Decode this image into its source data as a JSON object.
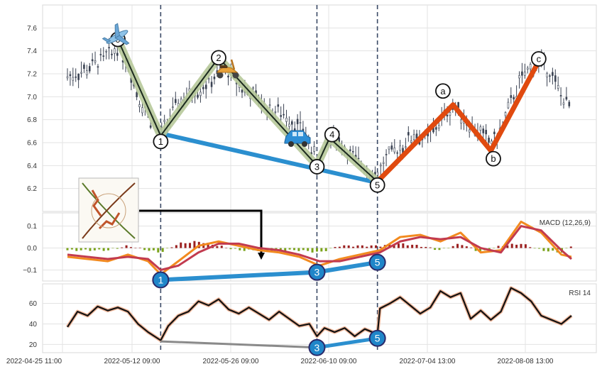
{
  "chart_data": [
    {
      "panel": "price",
      "type": "ohlc-candlestick",
      "ylim": [
        6.0,
        7.8
      ],
      "y_ticks": [
        6.2,
        6.4,
        6.6,
        6.8,
        7.0,
        7.2,
        7.4,
        7.6
      ],
      "grid": true,
      "x_domain": [
        0,
        100
      ],
      "price_path": [
        [
          0,
          7.18
        ],
        [
          3,
          7.22
        ],
        [
          6,
          7.3
        ],
        [
          9,
          7.38
        ],
        [
          10,
          7.45
        ],
        [
          12,
          7.3
        ],
        [
          14,
          7.0
        ],
        [
          16,
          6.85
        ],
        [
          18.5,
          6.65
        ],
        [
          20,
          6.8
        ],
        [
          22,
          6.95
        ],
        [
          25,
          7.05
        ],
        [
          28,
          7.12
        ],
        [
          30,
          7.2
        ],
        [
          31,
          7.25
        ],
        [
          34,
          7.1
        ],
        [
          37,
          7.0
        ],
        [
          40,
          6.9
        ],
        [
          43,
          6.85
        ],
        [
          45,
          6.78
        ],
        [
          47,
          6.7
        ],
        [
          49.5,
          6.42
        ],
        [
          51,
          6.55
        ],
        [
          53,
          6.66
        ],
        [
          55,
          6.55
        ],
        [
          57,
          6.45
        ],
        [
          59,
          6.4
        ],
        [
          61.5,
          6.3
        ],
        [
          63,
          6.45
        ],
        [
          65,
          6.52
        ],
        [
          67,
          6.6
        ],
        [
          69,
          6.68
        ],
        [
          71,
          6.62
        ],
        [
          73,
          6.72
        ],
        [
          75,
          6.85
        ],
        [
          76.5,
          6.92
        ],
        [
          78,
          6.85
        ],
        [
          80,
          6.75
        ],
        [
          82,
          6.68
        ],
        [
          84,
          6.6
        ],
        [
          86,
          6.7
        ],
        [
          88,
          6.95
        ],
        [
          90,
          7.15
        ],
        [
          92,
          7.25
        ],
        [
          94,
          7.3
        ],
        [
          96,
          7.2
        ],
        [
          98,
          7.0
        ],
        [
          100,
          6.9
        ]
      ],
      "wave_lines": {
        "impulse": [
          [
            10,
            7.5
          ],
          [
            18.5,
            6.66
          ],
          [
            30,
            7.34
          ],
          [
            49.5,
            6.4
          ],
          [
            52,
            6.64
          ],
          [
            61.5,
            6.26
          ]
        ],
        "corrective": [
          [
            61.5,
            6.26
          ],
          [
            76.5,
            6.93
          ],
          [
            84,
            6.53
          ],
          [
            93.5,
            7.31
          ]
        ],
        "trendline": [
          [
            18.5,
            6.68
          ],
          [
            61.5,
            6.25
          ]
        ]
      },
      "wave_labels": [
        {
          "label": "0",
          "x": 10,
          "y": 7.5
        },
        {
          "label": "1",
          "x": 18.5,
          "y": 6.61
        },
        {
          "label": "2",
          "x": 30,
          "y": 7.34
        },
        {
          "label": "3",
          "x": 49.5,
          "y": 6.39
        },
        {
          "label": "4",
          "x": 52.5,
          "y": 6.67
        },
        {
          "label": "5",
          "x": 61.5,
          "y": 6.23
        },
        {
          "label": "a",
          "x": 74.5,
          "y": 7.05
        },
        {
          "label": "b",
          "x": 84.5,
          "y": 6.46
        },
        {
          "label": "c",
          "x": 93.5,
          "y": 7.33
        }
      ],
      "icons": [
        "airplane-icon",
        "scooter-icon",
        "car-icon",
        "wave-diagram-thumbnail"
      ]
    },
    {
      "panel": "macd",
      "type": "line+bar",
      "title": "MACD (12,26,9)",
      "ylim": [
        -0.15,
        0.16
      ],
      "y_ticks": [
        0.1,
        0.0,
        -0.1
      ],
      "tick_labels": [
        "0.1",
        "0.0",
        "−0.1"
      ],
      "x": [
        0,
        4,
        8,
        12,
        16,
        18.5,
        22,
        26,
        30,
        34,
        38,
        42,
        46,
        50,
        54,
        58,
        62,
        66,
        70,
        74,
        78,
        82,
        86,
        90,
        94,
        98,
        100
      ],
      "series": [
        {
          "values": [
            -0.04,
            -0.05,
            -0.06,
            -0.03,
            -0.06,
            -0.12,
            -0.06,
            0.01,
            0.03,
            0.01,
            -0.01,
            -0.02,
            -0.04,
            -0.08,
            -0.05,
            -0.03,
            -0.01,
            0.05,
            0.06,
            0.03,
            0.07,
            -0.02,
            -0.01,
            0.12,
            0.07,
            -0.03,
            -0.04
          ],
          "color": "#f28a1f"
        },
        {
          "values": [
            -0.03,
            -0.04,
            -0.05,
            -0.04,
            -0.05,
            -0.1,
            -0.08,
            -0.02,
            0.02,
            0.02,
            0.0,
            -0.01,
            -0.03,
            -0.06,
            -0.06,
            -0.04,
            -0.02,
            0.03,
            0.05,
            0.04,
            0.05,
            0.0,
            -0.02,
            0.1,
            0.08,
            -0.01,
            -0.05
          ],
          "color": "#c23b4f"
        }
      ],
      "histogram": [
        -0.01,
        -0.01,
        -0.01,
        0.01,
        -0.01,
        -0.02,
        0.02,
        0.03,
        0.01,
        -0.01,
        -0.01,
        -0.01,
        -0.01,
        -0.02,
        0.01,
        0.01,
        0.01,
        0.02,
        0.01,
        -0.01,
        0.02,
        -0.02,
        0.01,
        0.02,
        -0.01,
        -0.02,
        0.01
      ],
      "markers": [
        {
          "label": "1",
          "x": 18.5,
          "y": -0.145
        },
        {
          "label": "3",
          "x": 49.5,
          "y": -0.11
        },
        {
          "label": "5",
          "x": 61.5,
          "y": -0.065
        }
      ]
    },
    {
      "panel": "rsi",
      "type": "line",
      "title": "RSI 14",
      "ylim": [
        12,
        79
      ],
      "y_ticks": [
        20,
        40,
        60
      ],
      "x": [
        0,
        2,
        4,
        6,
        8,
        10,
        12,
        14,
        16,
        18.5,
        20,
        22,
        24,
        26,
        28,
        30,
        32,
        34,
        36,
        38,
        40,
        42,
        44,
        46,
        48,
        49.5,
        51,
        53,
        55,
        57,
        59,
        61.5,
        62,
        64,
        66,
        68,
        70,
        72,
        74,
        76,
        78,
        80,
        82,
        84,
        86,
        88,
        90,
        92,
        94,
        96,
        98,
        100
      ],
      "values": [
        37,
        52,
        48,
        57,
        53,
        56,
        52,
        40,
        32,
        24,
        38,
        48,
        52,
        62,
        58,
        64,
        54,
        50,
        56,
        50,
        44,
        52,
        45,
        38,
        40,
        28,
        36,
        32,
        36,
        28,
        35,
        30,
        55,
        60,
        66,
        58,
        50,
        56,
        72,
        66,
        70,
        45,
        53,
        44,
        52,
        75,
        70,
        62,
        48,
        44,
        40,
        48
      ],
      "markers": [
        {
          "label": "3",
          "x": 49.5,
          "y": 17
        },
        {
          "label": "5",
          "x": 61.5,
          "y": 26
        }
      ],
      "divergence_lines": [
        [
          [
            18.5,
            23
          ],
          [
            49.5,
            17
          ]
        ],
        [
          [
            49.5,
            17
          ],
          [
            61.5,
            26
          ]
        ]
      ]
    }
  ],
  "x_ticks": [
    "2022-04-25 11:00",
    "2022-05-12 09:00",
    "2022-05-26 09:00",
    "2022-06-10 09:00",
    "2022-07-04 13:00",
    "2022-08-08 13:00"
  ],
  "colors": {
    "impulse": "#1c2a1f",
    "impulse_glow": "#b7c99a",
    "corrective": "#e04a0f",
    "trendline": "#2b8fcf",
    "marker_fill": "#1f86c9",
    "candle": "#3a4252"
  }
}
